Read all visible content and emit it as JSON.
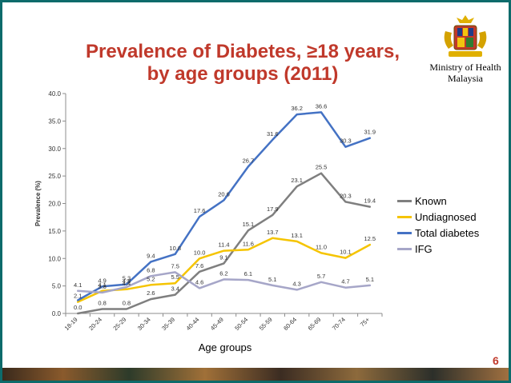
{
  "slide": {
    "title_line1": "Prevalence of Diabetes, ≥18 years,",
    "title_line2": "by age groups (2011)",
    "ministry_line1": "Ministry of Health",
    "ministry_line2": "Malaysia",
    "page_number": "6"
  },
  "icons": {
    "crest": "malaysia-coat-of-arms-icon"
  },
  "chart_data": {
    "type": "line",
    "categories": [
      "18-19",
      "20-24",
      "25-29",
      "30-34",
      "35-39",
      "40-44",
      "45-49",
      "50-54",
      "55-59",
      "60-64",
      "65-69",
      "70-74",
      "75+"
    ],
    "xlabel": "Age groups",
    "ylabel": "Prevalence (%)",
    "ylim": [
      0,
      40
    ],
    "ytick_labels": [
      "0.0",
      "5.0",
      "10.0",
      "15.0",
      "20.0",
      "25.0",
      "30.0",
      "35.0",
      "40.0"
    ],
    "grid": false,
    "legend_position": "right",
    "series": [
      {
        "name": "Known",
        "color": "#7f7f7f",
        "values": [
          0.0,
          0.8,
          0.8,
          2.6,
          3.4,
          7.6,
          9.1,
          15.1,
          17.9,
          23.1,
          25.5,
          20.3,
          19.4
        ],
        "labels": [
          "0.0",
          "0.8",
          "0.8",
          "2.6",
          "3.4",
          "7.6",
          "9.1",
          "15.1",
          "17.9",
          "23.1",
          "25.5",
          "20.3",
          "19.4"
        ]
      },
      {
        "name": "Undiagnosed",
        "color": "#f5c400",
        "values": [
          2.1,
          4.1,
          4.4,
          5.2,
          5.5,
          10.0,
          11.4,
          11.6,
          13.7,
          13.1,
          11.0,
          10.1,
          12.5
        ],
        "labels": [
          "2.1",
          "4.1",
          "4.4",
          "5.2",
          "5.5",
          "10.0",
          "11.4",
          "11.6",
          "13.7",
          "13.1",
          "11.0",
          "10.1",
          "12.5"
        ]
      },
      {
        "name": "Total diabetes",
        "color": "#4472c4",
        "values": [
          2.4,
          4.9,
          5.3,
          9.4,
          10.8,
          17.6,
          20.6,
          26.7,
          31.6,
          36.2,
          36.6,
          30.3,
          31.9
        ],
        "labels": [
          "",
          "4.9",
          "5.3",
          "9.4",
          "10.8",
          "17.6",
          "20.6",
          "26.7",
          "31.6",
          "36.2",
          "36.6",
          "30.3",
          "31.9"
        ]
      },
      {
        "name": "IFG",
        "color": "#a6a6c8",
        "values": [
          4.1,
          3.8,
          4.8,
          6.8,
          7.5,
          4.6,
          6.2,
          6.1,
          5.1,
          4.3,
          5.7,
          4.7,
          5.1
        ],
        "labels": [
          "4.1",
          "3.8",
          "4.8",
          "6.8",
          "7.5",
          "4.6",
          "6.2",
          "6.1",
          "5.1",
          "4.3",
          "5.7",
          "4.7",
          "5.1"
        ]
      }
    ]
  }
}
